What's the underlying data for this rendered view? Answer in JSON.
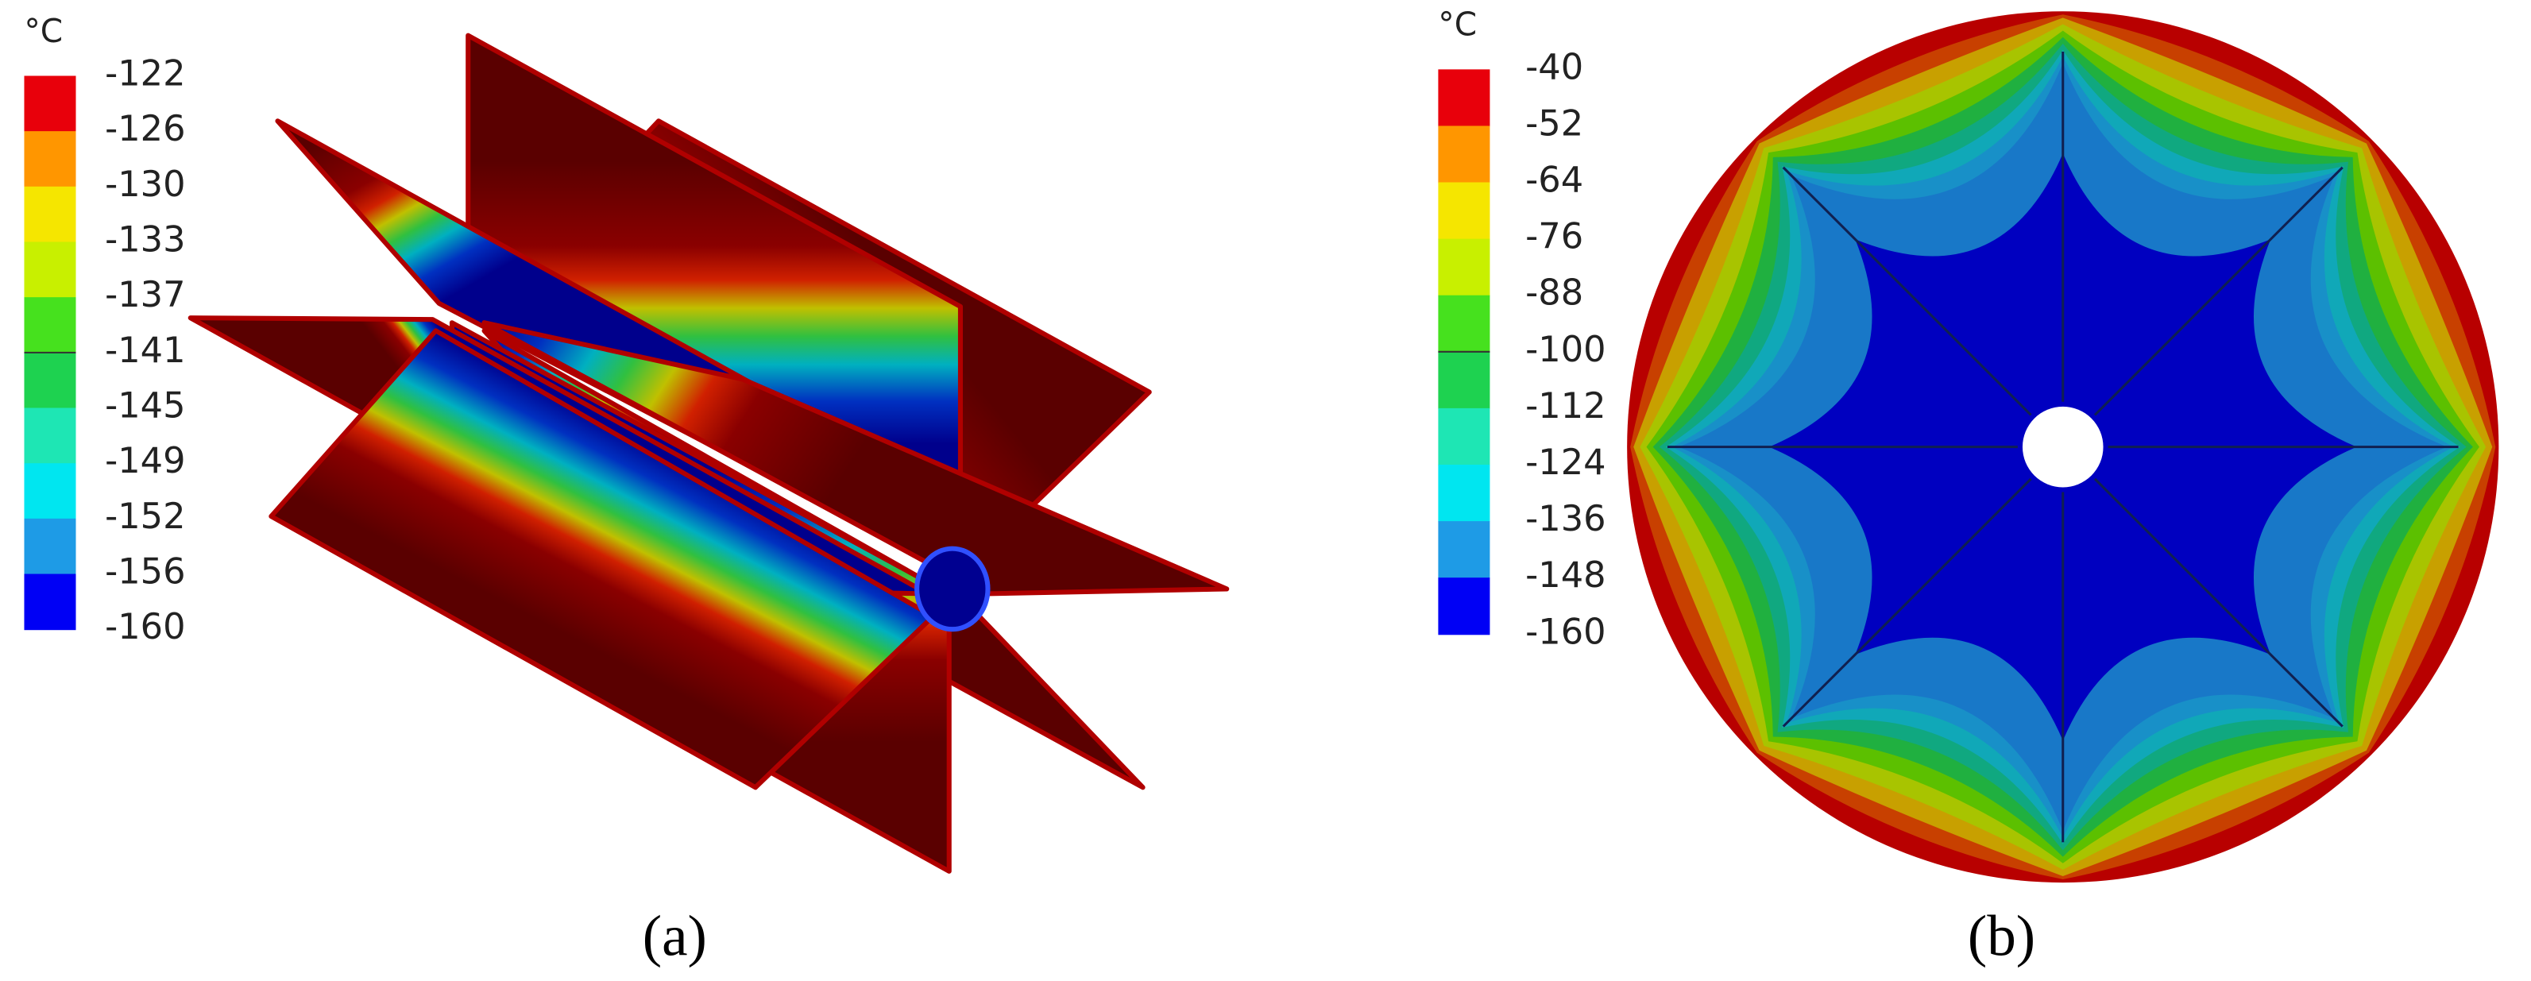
{
  "panels": [
    {
      "caption": "(a)",
      "unit": "°C",
      "legend_labels": [
        "-122",
        "-126",
        "-130",
        "-133",
        "-137",
        "-141",
        "-145",
        "-149",
        "-152",
        "-156",
        "-160"
      ],
      "legend_colors": [
        "#e8000b",
        "#ff9600",
        "#f5e600",
        "#c8f000",
        "#46e11e",
        "#1ed250",
        "#1ee6b4",
        "#00e6f0",
        "#1e9be6",
        "#0000f5"
      ]
    },
    {
      "caption": "(b)",
      "unit": "°C",
      "legend_labels": [
        "-40",
        "-52",
        "-64",
        "-76",
        "-88",
        "-100",
        "-112",
        "-124",
        "-136",
        "-148",
        "-160"
      ],
      "legend_colors": [
        "#e8000b",
        "#ff9600",
        "#f5e600",
        "#c8f000",
        "#46e11e",
        "#1ed250",
        "#1ee6b4",
        "#00e6f0",
        "#1e9be6",
        "#0000f5"
      ]
    }
  ]
}
